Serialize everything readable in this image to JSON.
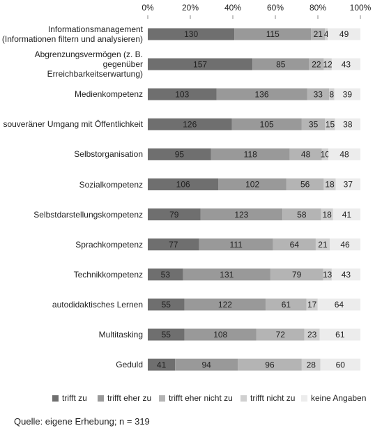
{
  "chart_data": {
    "type": "stacked_barh",
    "categories": [
      "Informationsmanagement\n(Informationen filtern und analysieren)",
      "Abgrenzungsvermögen (z. B. gegenüber\nErreichbarkeitserwartung)",
      "Medienkompetenz",
      "souveräner Umgang mit Öffentlichkeit",
      "Selbstorganisation",
      "Sozialkompetenz",
      "Selbstdarstellungskompetenz",
      "Sprachkompetenz",
      "Technikkompetenz",
      "autodidaktisches Lernen",
      "Multitasking",
      "Geduld"
    ],
    "series": [
      {
        "name": "trifft zu",
        "color": "#6f6f6f",
        "values": [
          130,
          157,
          103,
          126,
          95,
          106,
          79,
          77,
          53,
          55,
          55,
          41
        ]
      },
      {
        "name": "trifft eher zu",
        "color": "#999999",
        "values": [
          115,
          85,
          136,
          105,
          118,
          102,
          123,
          111,
          131,
          122,
          108,
          94
        ]
      },
      {
        "name": "trifft eher nicht zu",
        "color": "#b4b4b4",
        "values": [
          21,
          22,
          33,
          35,
          48,
          56,
          58,
          64,
          79,
          61,
          72,
          96
        ]
      },
      {
        "name": "trifft nicht zu",
        "color": "#d0d0d0",
        "values": [
          4,
          12,
          8,
          15,
          10,
          18,
          18,
          21,
          13,
          17,
          23,
          28
        ]
      },
      {
        "name": "keine Angaben",
        "color": "#ececec",
        "values": [
          49,
          43,
          39,
          38,
          48,
          37,
          41,
          46,
          43,
          64,
          61,
          60
        ]
      }
    ],
    "xlim": [
      0,
      319
    ],
    "xticks": [
      {
        "value": 0,
        "label": "0%"
      },
      {
        "value": 63.8,
        "label": "20%"
      },
      {
        "value": 127.6,
        "label": "40%"
      },
      {
        "value": 191.4,
        "label": "60%"
      },
      {
        "value": 255.2,
        "label": "80%"
      },
      {
        "value": 319,
        "label": "100%"
      }
    ],
    "source": "Quelle: eigene Erhebung; n = 319"
  }
}
